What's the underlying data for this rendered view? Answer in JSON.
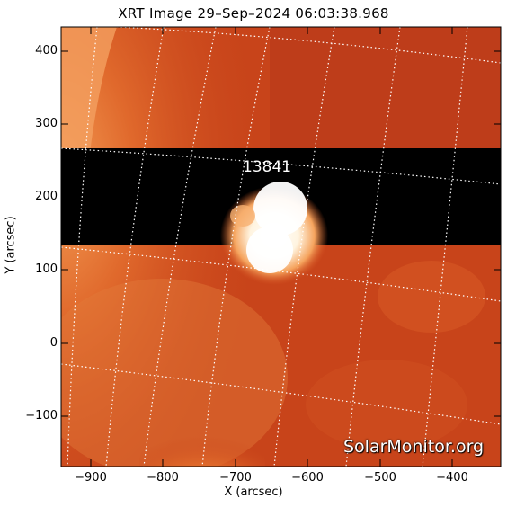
{
  "title": "XRT Image 29–Sep–2024 06:03:38.968",
  "axes": {
    "xlabel": "X (arcsec)",
    "ylabel": "Y (arcsec)",
    "x_ticks": [
      "−900",
      "−800",
      "−700",
      "−600",
      "−500",
      "−400"
    ],
    "y_ticks": [
      "400",
      "300",
      "200",
      "100",
      "0",
      "−100"
    ]
  },
  "active_region": "13841",
  "watermark": "SolarMonitor.org",
  "colors": {
    "background": "#c8441a",
    "dark_band": "#000000",
    "bright_region": "#ffffff",
    "grid": "#ffffff"
  }
}
